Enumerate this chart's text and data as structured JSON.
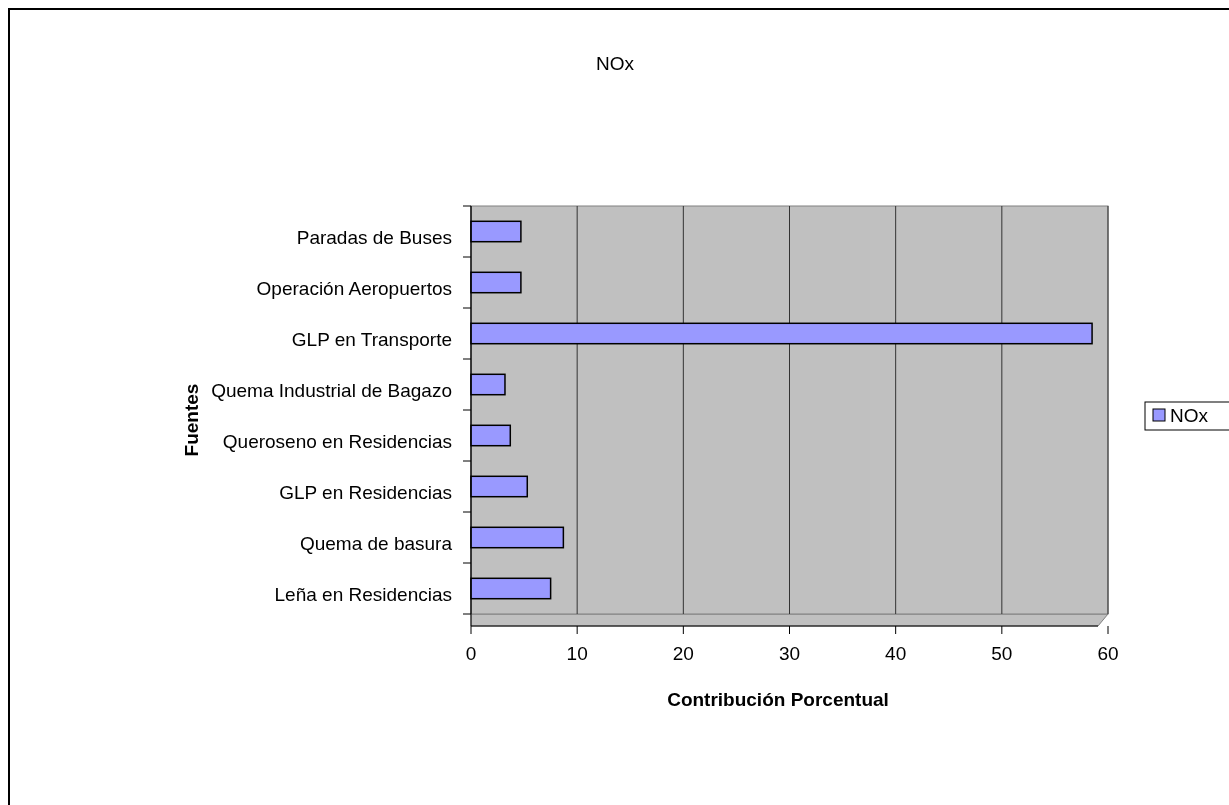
{
  "chart_data": {
    "type": "bar",
    "orientation": "horizontal",
    "title": "NOx",
    "xlabel": "Contribución Porcentual",
    "ylabel": "Fuentes",
    "categories": [
      "Paradas de Buses",
      "Operación Aeropuertos",
      "GLP en Transporte ",
      "Quema Industrial de Bagazo",
      "Queroseno en Residencias",
      "GLP en Residencias",
      "Quema de basura",
      "Leña en Residencias"
    ],
    "series": [
      {
        "name": "NOx",
        "color": "#9999ff",
        "values": [
          4.7,
          4.7,
          58.5,
          3.2,
          3.7,
          5.3,
          8.7,
          7.5
        ]
      }
    ],
    "xlim": [
      0,
      60
    ],
    "xticks": [
      0,
      10,
      20,
      30,
      40,
      50,
      60
    ],
    "grid": "x",
    "legend": "right"
  }
}
